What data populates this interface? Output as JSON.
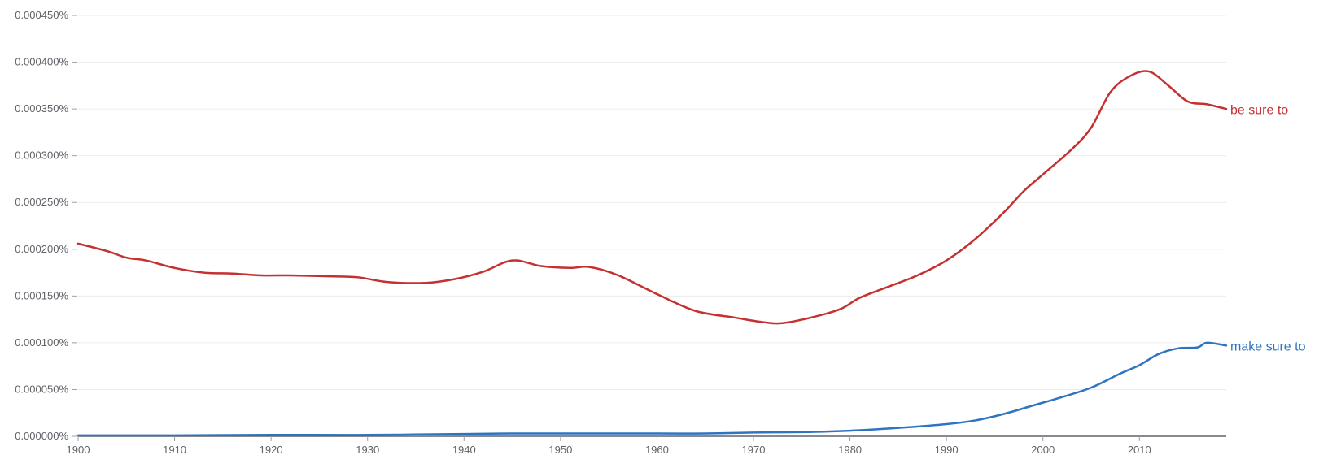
{
  "chart_data": {
    "type": "line",
    "title": "",
    "xlabel": "",
    "ylabel": "",
    "xlim": [
      1900,
      2019
    ],
    "ylim": [
      0,
      0.00045
    ],
    "grid": true,
    "legend": "inline-right",
    "x_ticks": [
      {
        "value": 1900,
        "label": "1900"
      },
      {
        "value": 1910,
        "label": "1910"
      },
      {
        "value": 1920,
        "label": "1920"
      },
      {
        "value": 1930,
        "label": "1930"
      },
      {
        "value": 1940,
        "label": "1940"
      },
      {
        "value": 1950,
        "label": "1950"
      },
      {
        "value": 1960,
        "label": "1960"
      },
      {
        "value": 1970,
        "label": "1970"
      },
      {
        "value": 1980,
        "label": "1980"
      },
      {
        "value": 1990,
        "label": "1990"
      },
      {
        "value": 2000,
        "label": "2000"
      },
      {
        "value": 2010,
        "label": "2010"
      }
    ],
    "y_ticks": [
      {
        "value": 0,
        "label": "0.000000%"
      },
      {
        "value": 5e-05,
        "label": "0.000050%"
      },
      {
        "value": 0.0001,
        "label": "0.000100%"
      },
      {
        "value": 0.00015,
        "label": "0.000150%"
      },
      {
        "value": 0.0002,
        "label": "0.000200%"
      },
      {
        "value": 0.00025,
        "label": "0.000250%"
      },
      {
        "value": 0.0003,
        "label": "0.000300%"
      },
      {
        "value": 0.00035,
        "label": "0.000350%"
      },
      {
        "value": 0.0004,
        "label": "0.000400%"
      },
      {
        "value": 0.00045,
        "label": "0.000450%"
      }
    ],
    "series": [
      {
        "name": "be sure to",
        "color": "#c53030",
        "x": [
          1900,
          1903,
          1905,
          1907,
          1910,
          1913,
          1916,
          1919,
          1922,
          1926,
          1929,
          1932,
          1936,
          1939,
          1942,
          1945,
          1948,
          1951,
          1953,
          1956,
          1960,
          1964,
          1968,
          1971,
          1973,
          1976,
          1979,
          1981,
          1984,
          1987,
          1990,
          1993,
          1996,
          1998,
          2000,
          2003,
          2005,
          2007,
          2009,
          2011,
          2013,
          2015,
          2017,
          2019
        ],
        "values": [
          0.000206,
          0.000198,
          0.000191,
          0.000188,
          0.00018,
          0.000175,
          0.000174,
          0.000172,
          0.000172,
          0.000171,
          0.00017,
          0.000165,
          0.000164,
          0.000168,
          0.000176,
          0.000188,
          0.000182,
          0.00018,
          0.000181,
          0.000172,
          0.000152,
          0.000134,
          0.000127,
          0.000122,
          0.000121,
          0.000127,
          0.000136,
          0.000148,
          0.00016,
          0.000172,
          0.000188,
          0.000211,
          0.00024,
          0.000262,
          0.00028,
          0.000307,
          0.00033,
          0.000368,
          0.000385,
          0.00039,
          0.000375,
          0.000358,
          0.000355,
          0.00035
        ]
      },
      {
        "name": "make sure to",
        "color": "#2f74c0",
        "x": [
          1900,
          1910,
          1920,
          1930,
          1940,
          1945,
          1950,
          1960,
          1965,
          1970,
          1975,
          1980,
          1985,
          1990,
          1993,
          1996,
          1999,
          2002,
          2005,
          2008,
          2010,
          2012,
          2014,
          2016,
          2017,
          2019
        ],
        "values": [
          1e-06,
          1e-06,
          1.5e-06,
          1.5e-06,
          2.5e-06,
          3e-06,
          3e-06,
          3e-06,
          3e-06,
          4e-06,
          4.5e-06,
          6e-06,
          9e-06,
          1.3e-05,
          1.7e-05,
          2.4e-05,
          3.3e-05,
          4.2e-05,
          5.2e-05,
          6.7e-05,
          7.6e-05,
          8.8e-05,
          9.4e-05,
          9.5e-05,
          0.0001,
          9.7e-05
        ]
      }
    ]
  }
}
